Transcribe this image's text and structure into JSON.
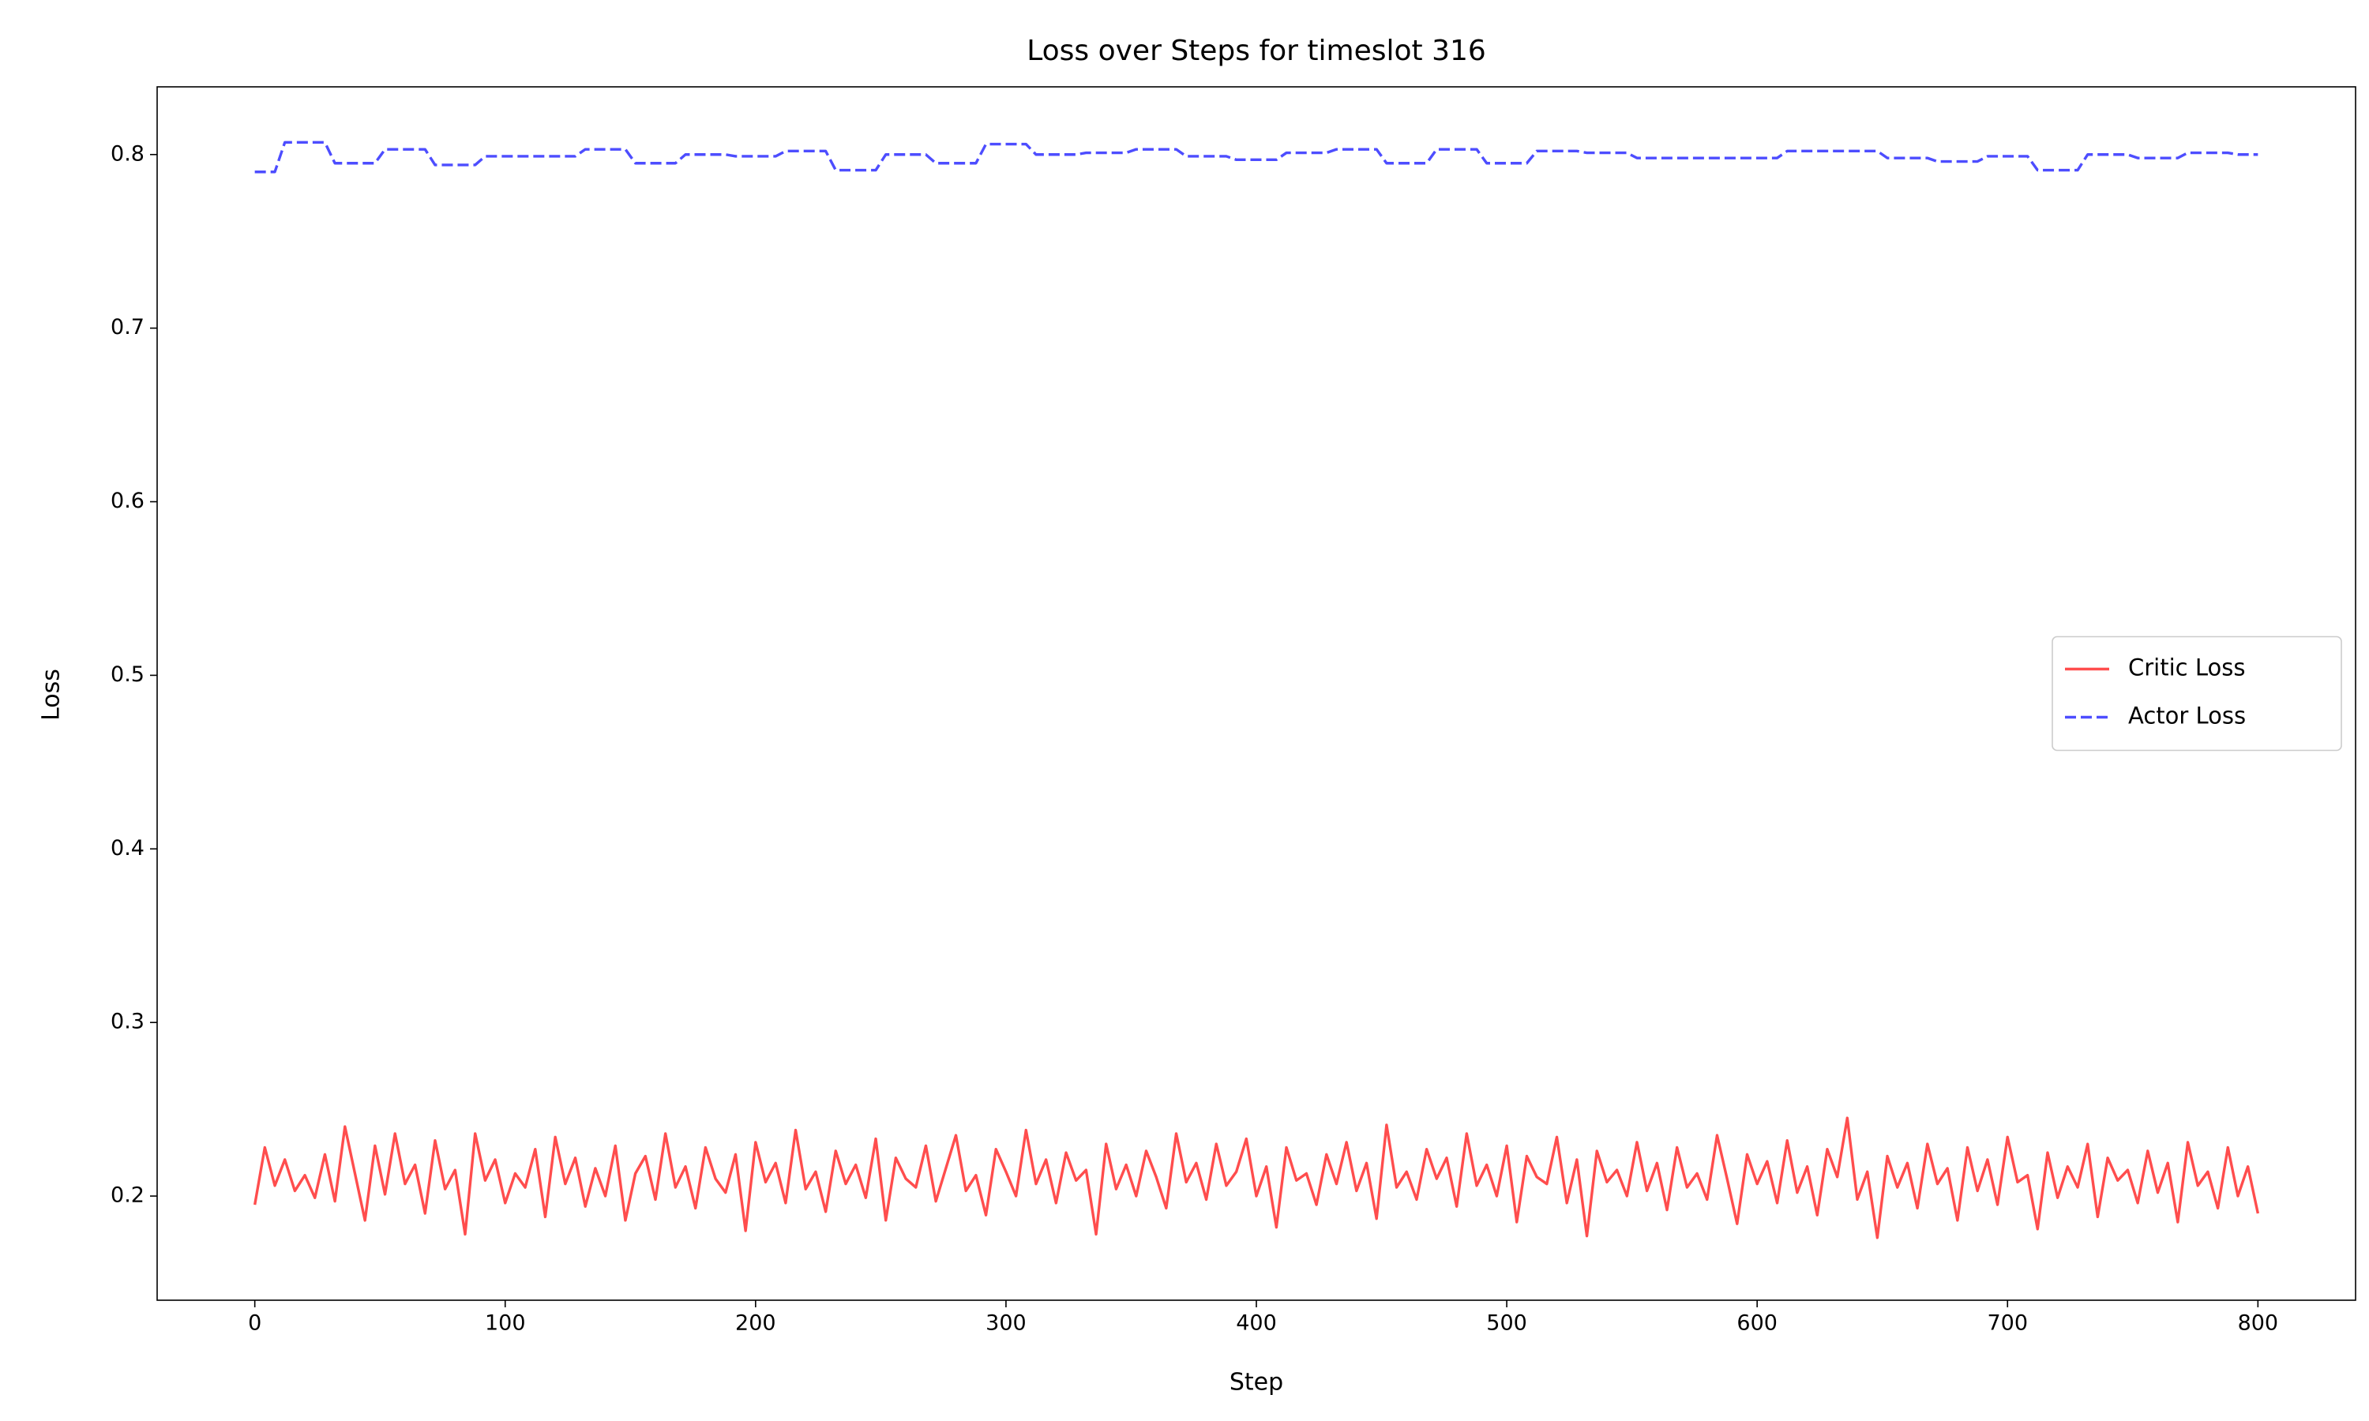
{
  "chart_data": {
    "type": "line",
    "title": "Loss over Steps for timeslot 316",
    "x_label": "Step",
    "y_label": "Loss",
    "x": [
      0,
      4,
      8,
      12,
      16,
      20,
      24,
      28,
      32,
      36,
      40,
      44,
      48,
      52,
      56,
      60,
      64,
      68,
      72,
      76,
      80,
      84,
      88,
      92,
      96,
      100,
      104,
      108,
      112,
      116,
      120,
      124,
      128,
      132,
      136,
      140,
      144,
      148,
      152,
      156,
      160,
      164,
      168,
      172,
      176,
      180,
      184,
      188,
      192,
      196,
      200,
      204,
      208,
      212,
      216,
      220,
      224,
      228,
      232,
      236,
      240,
      244,
      248,
      252,
      256,
      260,
      264,
      268,
      272,
      276,
      280,
      284,
      288,
      292,
      296,
      300,
      304,
      308,
      312,
      316,
      320,
      324,
      328,
      332,
      336,
      340,
      344,
      348,
      352,
      356,
      360,
      364,
      368,
      372,
      376,
      380,
      384,
      388,
      392,
      396,
      400,
      404,
      408,
      412,
      416,
      420,
      424,
      428,
      432,
      436,
      440,
      444,
      448,
      452,
      456,
      460,
      464,
      468,
      472,
      476,
      480,
      484,
      488,
      492,
      496,
      500,
      504,
      508,
      512,
      516,
      520,
      524,
      528,
      532,
      536,
      540,
      544,
      548,
      552,
      556,
      560,
      564,
      568,
      572,
      576,
      580,
      584,
      588,
      592,
      596,
      600,
      604,
      608,
      612,
      616,
      620,
      624,
      628,
      632,
      636,
      640,
      644,
      648,
      652,
      656,
      660,
      664,
      668,
      672,
      676,
      680,
      684,
      688,
      692,
      696,
      700,
      704,
      708,
      712,
      716,
      720,
      724,
      728,
      732,
      736,
      740,
      744,
      748,
      752,
      756,
      760,
      764,
      768,
      772,
      776,
      780,
      784,
      788,
      792,
      796,
      800
    ],
    "series": [
      {
        "name": "Critic Loss",
        "color": "#ff4d4d",
        "linestyle": "solid",
        "values": [
          0.195,
          0.228,
          0.206,
          0.221,
          0.203,
          0.212,
          0.199,
          0.224,
          0.197,
          0.24,
          0.213,
          0.186,
          0.229,
          0.201,
          0.236,
          0.207,
          0.218,
          0.19,
          0.232,
          0.204,
          0.215,
          0.178,
          0.236,
          0.209,
          0.221,
          0.196,
          0.213,
          0.205,
          0.227,
          0.188,
          0.234,
          0.207,
          0.222,
          0.194,
          0.216,
          0.2,
          0.229,
          0.186,
          0.213,
          0.223,
          0.198,
          0.236,
          0.205,
          0.217,
          0.193,
          0.228,
          0.21,
          0.202,
          0.224,
          0.18,
          0.231,
          0.208,
          0.219,
          0.196,
          0.238,
          0.204,
          0.214,
          0.191,
          0.226,
          0.207,
          0.218,
          0.199,
          0.233,
          0.186,
          0.222,
          0.21,
          0.205,
          0.229,
          0.197,
          0.216,
          0.235,
          0.203,
          0.212,
          0.189,
          0.227,
          0.214,
          0.2,
          0.238,
          0.207,
          0.221,
          0.196,
          0.225,
          0.209,
          0.215,
          0.178,
          0.23,
          0.204,
          0.218,
          0.2,
          0.226,
          0.211,
          0.193,
          0.236,
          0.208,
          0.219,
          0.198,
          0.23,
          0.206,
          0.214,
          0.233,
          0.2,
          0.217,
          0.182,
          0.228,
          0.209,
          0.213,
          0.195,
          0.224,
          0.207,
          0.231,
          0.203,
          0.219,
          0.187,
          0.241,
          0.205,
          0.214,
          0.198,
          0.227,
          0.21,
          0.222,
          0.194,
          0.236,
          0.206,
          0.218,
          0.2,
          0.229,
          0.185,
          0.223,
          0.211,
          0.207,
          0.234,
          0.196,
          0.221,
          0.177,
          0.226,
          0.208,
          0.215,
          0.2,
          0.231,
          0.203,
          0.219,
          0.192,
          0.228,
          0.205,
          0.213,
          0.198,
          0.235,
          0.21,
          0.184,
          0.224,
          0.207,
          0.22,
          0.196,
          0.232,
          0.202,
          0.217,
          0.189,
          0.227,
          0.211,
          0.245,
          0.198,
          0.214,
          0.176,
          0.223,
          0.205,
          0.219,
          0.193,
          0.23,
          0.207,
          0.216,
          0.186,
          0.228,
          0.203,
          0.221,
          0.195,
          0.234,
          0.208,
          0.212,
          0.181,
          0.225,
          0.199,
          0.217,
          0.205,
          0.23,
          0.188,
          0.222,
          0.209,
          0.215,
          0.196,
          0.226,
          0.202,
          0.219,
          0.185,
          0.231,
          0.206,
          0.214,
          0.193,
          0.228,
          0.2,
          0.217,
          0.19
        ]
      },
      {
        "name": "Actor Loss",
        "color": "#4d4dff",
        "linestyle": "dashed",
        "values": [
          0.79,
          0.79,
          0.79,
          0.807,
          0.807,
          0.807,
          0.807,
          0.807,
          0.795,
          0.795,
          0.795,
          0.795,
          0.795,
          0.803,
          0.803,
          0.803,
          0.803,
          0.803,
          0.794,
          0.794,
          0.794,
          0.794,
          0.794,
          0.799,
          0.799,
          0.799,
          0.799,
          0.799,
          0.799,
          0.799,
          0.799,
          0.799,
          0.799,
          0.803,
          0.803,
          0.803,
          0.803,
          0.803,
          0.795,
          0.795,
          0.795,
          0.795,
          0.795,
          0.8,
          0.8,
          0.8,
          0.8,
          0.8,
          0.799,
          0.799,
          0.799,
          0.799,
          0.799,
          0.802,
          0.802,
          0.802,
          0.802,
          0.802,
          0.791,
          0.791,
          0.791,
          0.791,
          0.791,
          0.8,
          0.8,
          0.8,
          0.8,
          0.8,
          0.795,
          0.795,
          0.795,
          0.795,
          0.795,
          0.806,
          0.806,
          0.806,
          0.806,
          0.806,
          0.8,
          0.8,
          0.8,
          0.8,
          0.8,
          0.801,
          0.801,
          0.801,
          0.801,
          0.801,
          0.803,
          0.803,
          0.803,
          0.803,
          0.803,
          0.799,
          0.799,
          0.799,
          0.799,
          0.799,
          0.797,
          0.797,
          0.797,
          0.797,
          0.797,
          0.801,
          0.801,
          0.801,
          0.801,
          0.801,
          0.803,
          0.803,
          0.803,
          0.803,
          0.803,
          0.795,
          0.795,
          0.795,
          0.795,
          0.795,
          0.803,
          0.803,
          0.803,
          0.803,
          0.803,
          0.795,
          0.795,
          0.795,
          0.795,
          0.795,
          0.802,
          0.802,
          0.802,
          0.802,
          0.802,
          0.801,
          0.801,
          0.801,
          0.801,
          0.801,
          0.798,
          0.798,
          0.798,
          0.798,
          0.798,
          0.798,
          0.798,
          0.798,
          0.798,
          0.798,
          0.798,
          0.798,
          0.798,
          0.798,
          0.798,
          0.802,
          0.802,
          0.802,
          0.802,
          0.802,
          0.802,
          0.802,
          0.802,
          0.802,
          0.802,
          0.798,
          0.798,
          0.798,
          0.798,
          0.798,
          0.796,
          0.796,
          0.796,
          0.796,
          0.796,
          0.799,
          0.799,
          0.799,
          0.799,
          0.799,
          0.791,
          0.791,
          0.791,
          0.791,
          0.791,
          0.8,
          0.8,
          0.8,
          0.8,
          0.8,
          0.798,
          0.798,
          0.798,
          0.798,
          0.798,
          0.801,
          0.801,
          0.801,
          0.801,
          0.801,
          0.8,
          0.8,
          0.8
        ]
      }
    ],
    "xlim": [
      -39,
      839
    ],
    "ylim": [
      0.14,
      0.839
    ],
    "xticks": [
      0,
      100,
      200,
      300,
      400,
      500,
      600,
      700,
      800
    ],
    "yticks": [
      0.2,
      0.3,
      0.4,
      0.5,
      0.6,
      0.7,
      0.8
    ],
    "legend": "center right",
    "grid": false
  }
}
